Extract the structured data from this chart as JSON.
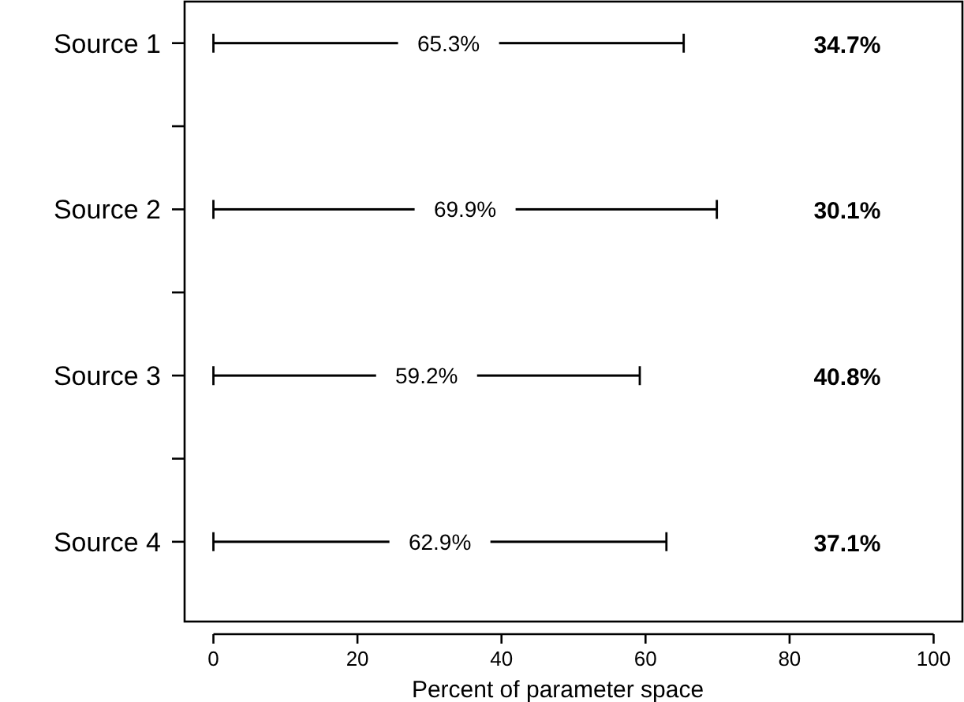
{
  "chart_data": {
    "type": "bar",
    "orientation": "horizontal",
    "xlabel": "Percent of parameter space",
    "categories": [
      "Source 1",
      "Source 2",
      "Source 3",
      "Source 4"
    ],
    "values": [
      65.3,
      69.9,
      59.2,
      62.9
    ],
    "value_labels": [
      "65.3%",
      "69.9%",
      "59.2%",
      "62.9%"
    ],
    "color": "#000000",
    "xlim": [
      -4,
      104
    ],
    "xticks": [
      0,
      20,
      40,
      60,
      80,
      100
    ],
    "grid": false,
    "annotations": [
      "34.7%",
      "30.1%",
      "40.8%",
      "37.1%"
    ]
  }
}
